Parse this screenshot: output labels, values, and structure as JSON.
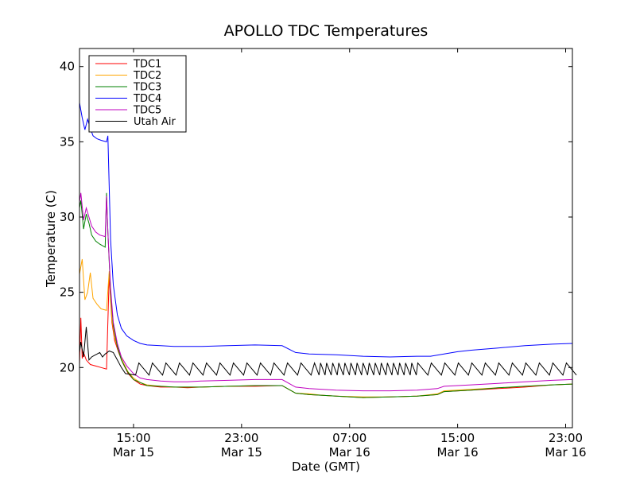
{
  "chart_data": {
    "type": "line",
    "title": "APOLLO TDC Temperatures",
    "xlabel": "Date (GMT)",
    "ylabel": "Temperature (C)",
    "xlim": [
      11.0,
      47.5
    ],
    "ylim": [
      16.0,
      41.2
    ],
    "grid": false,
    "legend_position": "top-left",
    "x_ticks": [
      {
        "value": 15,
        "time": "15:00",
        "date": "Mar 15"
      },
      {
        "value": 23,
        "time": "23:00",
        "date": "Mar 15"
      },
      {
        "value": 31,
        "time": "07:00",
        "date": "Mar 16"
      },
      {
        "value": 39,
        "time": "15:00",
        "date": "Mar 16"
      },
      {
        "value": 47,
        "time": "23:00",
        "date": "Mar 16"
      }
    ],
    "y_ticks": [
      20,
      25,
      30,
      35,
      40
    ],
    "series": [
      {
        "name": "TDC1",
        "color": "#ff0000",
        "x": [
          11.0,
          11.1,
          11.2,
          11.3,
          11.5,
          11.8,
          12.2,
          12.6,
          13.0,
          13.2,
          13.3,
          13.4,
          13.6,
          13.9,
          14.2,
          14.6,
          15.0,
          15.5,
          16.0,
          17.0,
          18.0,
          19.0,
          20.0,
          22.0,
          24.0,
          26.0,
          27.0,
          28.0,
          29.0,
          30.0,
          32.0,
          34.0,
          36.0,
          37.5,
          38.0,
          40.0,
          42.0,
          44.0,
          46.0,
          47.5
        ],
        "y": [
          20.2,
          23.3,
          20.6,
          21.0,
          20.5,
          20.2,
          20.1,
          20.0,
          19.9,
          26.2,
          24.5,
          23.0,
          21.8,
          21.0,
          20.3,
          19.6,
          19.2,
          18.9,
          18.8,
          18.7,
          18.7,
          18.65,
          18.7,
          18.75,
          18.75,
          18.8,
          18.3,
          18.2,
          18.15,
          18.1,
          18.0,
          18.05,
          18.1,
          18.2,
          18.4,
          18.5,
          18.6,
          18.7,
          18.85,
          18.9
        ]
      },
      {
        "name": "TDC2",
        "color": "#ffa500",
        "x": [
          11.0,
          11.2,
          11.4,
          11.6,
          11.8,
          12.0,
          12.3,
          12.6,
          13.0,
          13.2,
          13.3,
          13.4,
          13.6,
          13.9,
          14.2,
          14.6,
          15.0,
          15.5,
          16.0,
          17.0,
          18.0,
          19.0,
          20.0,
          22.0,
          24.0,
          26.0,
          27.0,
          28.0,
          29.0,
          30.0,
          32.0,
          34.0,
          36.0,
          37.5,
          38.0,
          40.0,
          42.0,
          44.0,
          46.0,
          47.5
        ],
        "y": [
          26.2,
          27.2,
          24.5,
          25.0,
          26.3,
          24.6,
          24.2,
          23.9,
          23.8,
          26.4,
          24.7,
          23.2,
          22.0,
          21.1,
          20.4,
          19.7,
          19.3,
          19.0,
          18.85,
          18.75,
          18.7,
          18.7,
          18.7,
          18.75,
          18.8,
          18.8,
          18.3,
          18.25,
          18.15,
          18.1,
          18.05,
          18.05,
          18.1,
          18.25,
          18.45,
          18.55,
          18.65,
          18.75,
          18.85,
          18.9
        ]
      },
      {
        "name": "TDC3",
        "color": "#008000",
        "x": [
          11.0,
          11.1,
          11.3,
          11.5,
          11.7,
          11.9,
          12.2,
          12.5,
          12.9,
          13.0,
          13.1,
          13.3,
          13.5,
          13.8,
          14.1,
          14.5,
          15.0,
          15.5,
          16.0,
          17.0,
          18.0,
          19.0,
          20.0,
          22.0,
          24.0,
          26.0,
          27.0,
          28.0,
          29.0,
          30.0,
          32.0,
          34.0,
          36.0,
          37.5,
          38.0,
          40.0,
          42.0,
          44.0,
          46.0,
          47.5
        ],
        "y": [
          30.6,
          31.1,
          29.2,
          30.2,
          29.6,
          28.8,
          28.4,
          28.2,
          28.0,
          31.6,
          29.0,
          25.0,
          22.8,
          21.4,
          20.5,
          19.8,
          19.2,
          19.0,
          18.8,
          18.75,
          18.7,
          18.7,
          18.7,
          18.75,
          18.8,
          18.8,
          18.3,
          18.2,
          18.15,
          18.1,
          18.0,
          18.05,
          18.1,
          18.2,
          18.4,
          18.5,
          18.65,
          18.75,
          18.85,
          18.9
        ]
      },
      {
        "name": "TDC4",
        "color": "#0000ff",
        "x": [
          11.0,
          11.2,
          11.4,
          11.6,
          11.8,
          12.0,
          12.3,
          12.6,
          13.0,
          13.1,
          13.3,
          13.5,
          13.8,
          14.1,
          14.5,
          15.0,
          15.5,
          16.0,
          17.0,
          18.0,
          20.0,
          22.0,
          24.0,
          26.0,
          27.0,
          28.0,
          30.0,
          32.0,
          34.0,
          36.0,
          37.0,
          38.0,
          39.0,
          40.0,
          42.0,
          44.0,
          46.0,
          47.5
        ],
        "y": [
          37.6,
          36.6,
          35.8,
          36.5,
          35.9,
          35.4,
          35.2,
          35.1,
          35.0,
          35.4,
          28.5,
          25.5,
          23.5,
          22.6,
          22.1,
          21.8,
          21.6,
          21.5,
          21.45,
          21.4,
          21.4,
          21.45,
          21.5,
          21.45,
          21.0,
          20.9,
          20.85,
          20.75,
          20.7,
          20.75,
          20.75,
          20.9,
          21.05,
          21.15,
          21.3,
          21.45,
          21.55,
          21.6
        ]
      },
      {
        "name": "TDC5",
        "color": "#bf00bf",
        "x": [
          11.0,
          11.1,
          11.3,
          11.5,
          11.7,
          11.9,
          12.2,
          12.5,
          12.9,
          13.0,
          13.1,
          13.3,
          13.5,
          13.8,
          14.1,
          14.5,
          15.0,
          15.5,
          16.0,
          17.0,
          18.0,
          19.0,
          20.0,
          22.0,
          24.0,
          26.0,
          27.0,
          28.0,
          29.0,
          30.0,
          32.0,
          34.0,
          36.0,
          37.5,
          38.0,
          40.0,
          42.0,
          44.0,
          46.0,
          47.5
        ],
        "y": [
          31.0,
          31.6,
          29.8,
          30.6,
          30.0,
          29.4,
          29.0,
          28.8,
          28.7,
          31.4,
          29.0,
          25.3,
          23.0,
          21.6,
          20.7,
          20.1,
          19.6,
          19.3,
          19.2,
          19.1,
          19.05,
          19.05,
          19.1,
          19.15,
          19.2,
          19.2,
          18.7,
          18.6,
          18.55,
          18.5,
          18.45,
          18.45,
          18.5,
          18.6,
          18.75,
          18.85,
          18.95,
          19.05,
          19.15,
          19.2
        ]
      },
      {
        "name": "Utah Air",
        "color": "#000000",
        "x": [
          11.0,
          11.1,
          11.3,
          11.5,
          11.7,
          11.9,
          12.1,
          12.3,
          12.5,
          12.7,
          12.9,
          13.2,
          13.5,
          13.8,
          14.1,
          14.4
        ],
        "y": [
          21.0,
          21.7,
          20.7,
          22.7,
          20.5,
          20.7,
          20.8,
          20.9,
          21.0,
          20.7,
          20.9,
          21.1,
          21.0,
          20.5,
          20.0,
          19.6
        ],
        "sawtooth_start": 14.4,
        "sawtooth_end": 47.5,
        "sawtooth_low": 19.5,
        "sawtooth_high": 20.3
      }
    ]
  }
}
